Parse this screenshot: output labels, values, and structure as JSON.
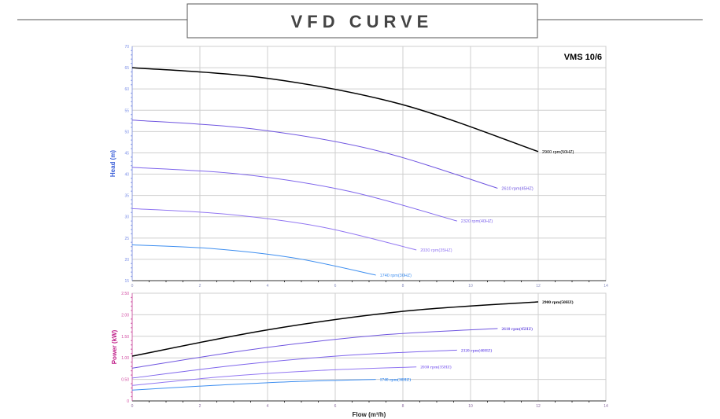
{
  "title": "VFD CURVE",
  "model": "VMS 10/6",
  "chart_data": [
    {
      "type": "line",
      "name": "head",
      "xlabel": "Flow (m³/h)",
      "ylabel": "Head (m)",
      "xlim": [
        0,
        14
      ],
      "ylim": [
        15,
        70
      ],
      "xticks": [
        0,
        2,
        4,
        6,
        8,
        10,
        12,
        14
      ],
      "yticks": [
        15,
        20,
        25,
        30,
        35,
        40,
        45,
        50,
        55,
        60,
        65,
        70
      ],
      "grid": true,
      "series": [
        {
          "name": "2900 rpm(50HZ)",
          "color": "#000000",
          "x": [
            0,
            4,
            8,
            12
          ],
          "y": [
            65,
            62.5,
            56.3,
            45.3
          ]
        },
        {
          "name": "2610 rpm(45HZ)",
          "color": "#6f55e0",
          "x": [
            0,
            3.6,
            7.2,
            10.8
          ],
          "y": [
            52.7,
            50.6,
            45.6,
            36.7
          ]
        },
        {
          "name": "2320 rpm(40HZ)",
          "color": "#7f66ec",
          "x": [
            0,
            3.2,
            6.4,
            9.6
          ],
          "y": [
            41.6,
            40.0,
            36.0,
            29.0
          ]
        },
        {
          "name": "2030 rpm(35HZ)",
          "color": "#9277f2",
          "x": [
            0,
            2.8,
            5.6,
            8.4
          ],
          "y": [
            31.9,
            30.6,
            27.6,
            22.2
          ]
        },
        {
          "name": "1740 rpm(30HZ)",
          "color": "#3d8ef0",
          "x": [
            0,
            2.4,
            4.8,
            7.2
          ],
          "y": [
            23.4,
            22.5,
            20.3,
            16.3
          ]
        }
      ]
    },
    {
      "type": "line",
      "name": "power",
      "xlabel": "Flow (m³/h)",
      "ylabel": "Power (kW)",
      "xlim": [
        0,
        14
      ],
      "ylim": [
        0,
        2.5
      ],
      "xticks": [
        0,
        2,
        4,
        6,
        8,
        10,
        12,
        14
      ],
      "yticks": [
        "0",
        "0.50",
        "1.00",
        "1.50",
        "2.00",
        "2.50"
      ],
      "grid": true,
      "series": [
        {
          "name": "2900 rpm(50HZ)",
          "color": "#000000",
          "x": [
            0,
            4,
            8,
            12
          ],
          "y": [
            1.04,
            1.65,
            2.08,
            2.3
          ]
        },
        {
          "name": "2610 rpm(45HZ)",
          "color": "#6f55e0",
          "x": [
            0,
            3.6,
            7.2,
            10.8
          ],
          "y": [
            0.76,
            1.2,
            1.52,
            1.68
          ]
        },
        {
          "name": "2320 rpm(40HZ)",
          "color": "#7f66ec",
          "x": [
            0,
            3.2,
            6.4,
            9.6
          ],
          "y": [
            0.53,
            0.84,
            1.06,
            1.18
          ]
        },
        {
          "name": "2030 rpm(35HZ)",
          "color": "#9277f2",
          "x": [
            0,
            2.8,
            5.6,
            8.4
          ],
          "y": [
            0.36,
            0.57,
            0.71,
            0.79
          ]
        },
        {
          "name": "1740 rpm(30HZ)",
          "color": "#3d8ef0",
          "x": [
            0,
            2.4,
            4.8,
            7.2
          ],
          "y": [
            0.25,
            0.36,
            0.45,
            0.5
          ]
        }
      ]
    }
  ]
}
